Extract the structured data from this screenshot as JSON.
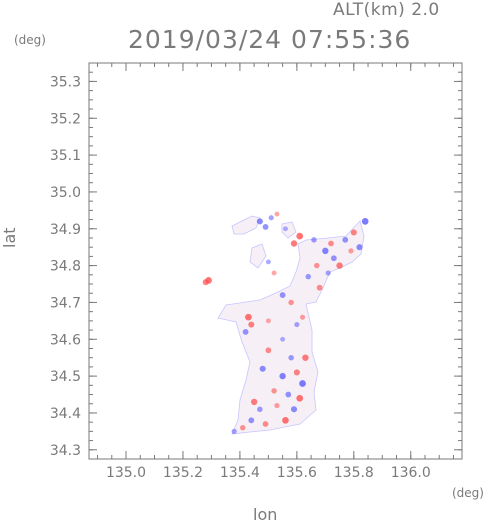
{
  "header": {
    "altitude_label": "ALT(km) 2.0",
    "timestamp": "2019/03/24 07:55:36",
    "y_unit": "(deg)",
    "x_unit": "(deg)"
  },
  "chart_data": {
    "type": "heatmap",
    "title": "2019/03/24 07:55:36",
    "subtitle": "ALT(km) 2.0",
    "xlabel": "lon",
    "ylabel": "lat",
    "xlim": [
      134.87,
      136.18
    ],
    "ylim": [
      34.275,
      35.35
    ],
    "x_ticks": [
      135.0,
      135.2,
      135.4,
      135.6,
      135.8,
      136.0
    ],
    "y_ticks": [
      34.3,
      34.4,
      34.5,
      34.6,
      34.7,
      34.8,
      34.9,
      35.0,
      35.1,
      35.2,
      35.3
    ],
    "grid": false,
    "colors": {
      "negative": "#5a5aff",
      "positive": "#ff5050",
      "neutral": "#f4eef4",
      "axis": "#7a7a7a"
    },
    "points": [
      {
        "lon": 135.29,
        "lat": 34.76,
        "v": 0.9
      },
      {
        "lon": 135.28,
        "lat": 34.755,
        "v": 0.7
      },
      {
        "lon": 135.47,
        "lat": 34.92,
        "v": -0.7
      },
      {
        "lon": 135.49,
        "lat": 34.905,
        "v": -0.6
      },
      {
        "lon": 135.51,
        "lat": 34.93,
        "v": -0.4
      },
      {
        "lon": 135.53,
        "lat": 34.94,
        "v": 0.3
      },
      {
        "lon": 135.56,
        "lat": 34.9,
        "v": -0.3
      },
      {
        "lon": 135.61,
        "lat": 34.88,
        "v": 0.9
      },
      {
        "lon": 135.59,
        "lat": 34.86,
        "v": 0.8
      },
      {
        "lon": 135.66,
        "lat": 34.87,
        "v": -0.5
      },
      {
        "lon": 135.72,
        "lat": 34.86,
        "v": 0.6
      },
      {
        "lon": 135.77,
        "lat": 34.87,
        "v": -0.6
      },
      {
        "lon": 135.8,
        "lat": 34.89,
        "v": 0.7
      },
      {
        "lon": 135.84,
        "lat": 34.92,
        "v": -0.9
      },
      {
        "lon": 135.82,
        "lat": 34.85,
        "v": -0.7
      },
      {
        "lon": 135.79,
        "lat": 34.84,
        "v": 0.4
      },
      {
        "lon": 135.7,
        "lat": 34.84,
        "v": -0.8
      },
      {
        "lon": 135.73,
        "lat": 34.82,
        "v": -0.6
      },
      {
        "lon": 135.67,
        "lat": 34.8,
        "v": 0.5
      },
      {
        "lon": 135.75,
        "lat": 34.8,
        "v": 0.8
      },
      {
        "lon": 135.71,
        "lat": 34.78,
        "v": -0.4
      },
      {
        "lon": 135.64,
        "lat": 34.77,
        "v": -0.5
      },
      {
        "lon": 135.68,
        "lat": 34.74,
        "v": 0.6
      },
      {
        "lon": 135.5,
        "lat": 34.81,
        "v": -0.3
      },
      {
        "lon": 135.52,
        "lat": 34.78,
        "v": 0.3
      },
      {
        "lon": 135.55,
        "lat": 34.72,
        "v": -0.6
      },
      {
        "lon": 135.58,
        "lat": 34.7,
        "v": 0.5
      },
      {
        "lon": 135.43,
        "lat": 34.66,
        "v": 0.9
      },
      {
        "lon": 135.44,
        "lat": 34.64,
        "v": 0.7
      },
      {
        "lon": 135.42,
        "lat": 34.62,
        "v": -0.6
      },
      {
        "lon": 135.5,
        "lat": 34.65,
        "v": 0.3
      },
      {
        "lon": 135.6,
        "lat": 34.64,
        "v": -0.4
      },
      {
        "lon": 135.62,
        "lat": 34.66,
        "v": 0.4
      },
      {
        "lon": 135.55,
        "lat": 34.6,
        "v": -0.3
      },
      {
        "lon": 135.5,
        "lat": 34.57,
        "v": 0.6
      },
      {
        "lon": 135.58,
        "lat": 34.55,
        "v": -0.5
      },
      {
        "lon": 135.63,
        "lat": 34.55,
        "v": 0.8
      },
      {
        "lon": 135.48,
        "lat": 34.52,
        "v": -0.7
      },
      {
        "lon": 135.55,
        "lat": 34.5,
        "v": -0.8
      },
      {
        "lon": 135.6,
        "lat": 34.51,
        "v": 0.7
      },
      {
        "lon": 135.62,
        "lat": 34.48,
        "v": -0.9
      },
      {
        "lon": 135.52,
        "lat": 34.46,
        "v": 0.5
      },
      {
        "lon": 135.57,
        "lat": 34.45,
        "v": -0.6
      },
      {
        "lon": 135.61,
        "lat": 34.44,
        "v": 0.9
      },
      {
        "lon": 135.45,
        "lat": 34.43,
        "v": 0.8
      },
      {
        "lon": 135.47,
        "lat": 34.41,
        "v": -0.5
      },
      {
        "lon": 135.53,
        "lat": 34.42,
        "v": 0.4
      },
      {
        "lon": 135.59,
        "lat": 34.41,
        "v": -0.7
      },
      {
        "lon": 135.44,
        "lat": 34.38,
        "v": -0.6
      },
      {
        "lon": 135.49,
        "lat": 34.37,
        "v": 0.6
      },
      {
        "lon": 135.56,
        "lat": 34.38,
        "v": 0.9
      },
      {
        "lon": 135.41,
        "lat": 34.36,
        "v": 0.5
      },
      {
        "lon": 135.38,
        "lat": 34.35,
        "v": -0.4
      }
    ]
  }
}
